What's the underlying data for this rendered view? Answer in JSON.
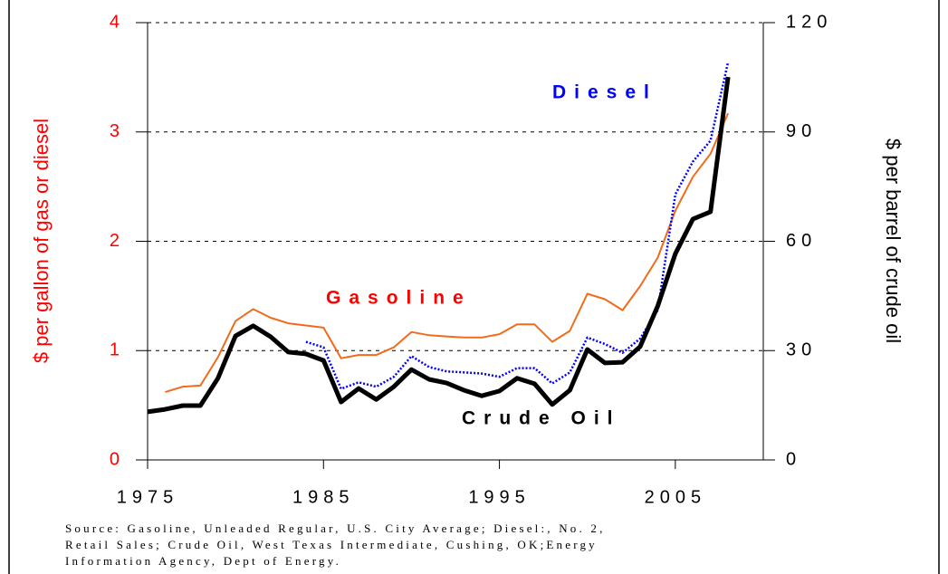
{
  "chart_data": {
    "type": "line",
    "y_label": "$ per gallon of gas or diesel",
    "y2_label": "$ per barrel of crude oil",
    "source": [
      "Source: Gasoline, Unleaded Regular, U.S. City Average; Diesel:, No. 2,",
      "Retail Sales; Crude Oil, West Texas Intermediate, Cushing, OK;Energy",
      "Information Agency, Dept of Energy."
    ],
    "x": [
      1975,
      1976,
      1977,
      1978,
      1979,
      1980,
      1981,
      1982,
      1983,
      1984,
      1985,
      1986,
      1987,
      1988,
      1989,
      1990,
      1991,
      1992,
      1993,
      1994,
      1995,
      1996,
      1997,
      1998,
      1999,
      2000,
      2001,
      2002,
      2003,
      2004,
      2005,
      2006,
      2007,
      2008
    ],
    "xlim": [
      1975,
      2010
    ],
    "xticks": [
      1975,
      1985,
      1995,
      2005
    ],
    "ylim": [
      0,
      4
    ],
    "yticks": [
      0,
      1,
      2,
      3,
      4
    ],
    "y2lim": [
      0,
      120
    ],
    "y2ticks": [
      0,
      30,
      60,
      90,
      120
    ],
    "grid": true,
    "series": [
      {
        "name": "Gasoline",
        "color": "#f26a1b",
        "label_color": "#ff0000",
        "line_style": "solid",
        "line_width": 2,
        "values": [
          null,
          0.62,
          0.67,
          0.68,
          0.94,
          1.27,
          1.38,
          1.3,
          1.25,
          1.23,
          1.21,
          0.93,
          0.96,
          0.96,
          1.03,
          1.17,
          1.14,
          1.13,
          1.12,
          1.12,
          1.15,
          1.24,
          1.24,
          1.08,
          1.18,
          1.52,
          1.47,
          1.37,
          1.59,
          1.85,
          2.28,
          2.59,
          2.8,
          3.17
        ]
      },
      {
        "name": "Diesel",
        "color": "#0000ff",
        "label_color": "#0000ff",
        "line_style": "dotted",
        "line_width": 2.5,
        "values": [
          null,
          null,
          null,
          null,
          null,
          null,
          null,
          null,
          null,
          1.08,
          1.03,
          0.65,
          0.71,
          0.67,
          0.76,
          0.95,
          0.85,
          0.81,
          0.8,
          0.79,
          0.76,
          0.84,
          0.84,
          0.7,
          0.8,
          1.12,
          1.06,
          0.98,
          1.11,
          1.37,
          2.43,
          2.73,
          2.92,
          3.64
        ]
      },
      {
        "name": "Crude Oil",
        "color": "#000000",
        "label_color": "#000000",
        "line_style": "solid",
        "line_width": 5,
        "axis": "y2",
        "values": [
          13.2,
          13.9,
          14.9,
          14.9,
          22.4,
          34.0,
          36.8,
          33.8,
          29.6,
          29.1,
          27.3,
          15.9,
          19.6,
          16.6,
          20.1,
          24.8,
          22.1,
          21.1,
          19.1,
          17.6,
          18.9,
          22.4,
          20.9,
          15.2,
          19.1,
          30.3,
          26.6,
          26.8,
          31.1,
          42.2,
          56.6,
          66.1,
          68.1,
          105.1
        ]
      }
    ]
  }
}
